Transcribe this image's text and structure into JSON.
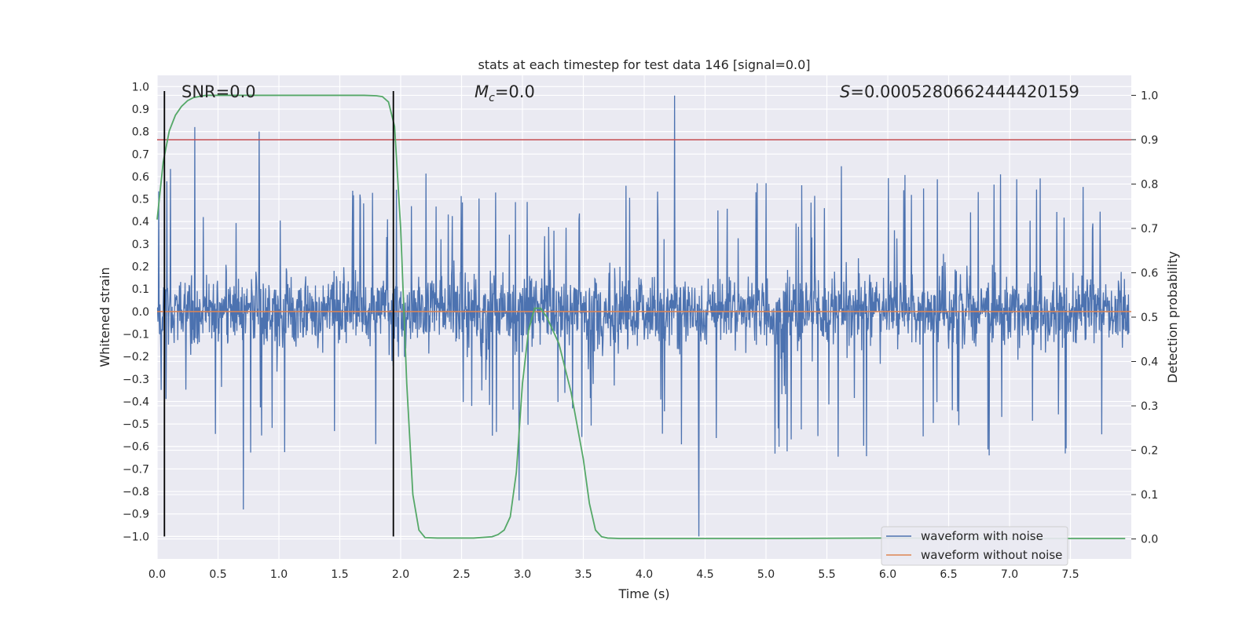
{
  "chart_data": {
    "type": "line",
    "title": "stats at each timestep for test data 146 [signal=0.0]",
    "xlabel": "Time (s)",
    "ylabel": "Whitened strain",
    "y2label": "Detection probability",
    "xlim": [
      0.0,
      8.0
    ],
    "ylim": [
      -1.1,
      1.05
    ],
    "y2lim": [
      -0.045,
      1.045
    ],
    "xticks": [
      0.0,
      0.5,
      1.0,
      1.5,
      2.0,
      2.5,
      3.0,
      3.5,
      4.0,
      4.5,
      5.0,
      5.5,
      6.0,
      6.5,
      7.0,
      7.5
    ],
    "yticks": [
      1.0,
      0.9,
      0.8,
      0.7,
      0.6,
      0.5,
      0.4,
      0.3,
      0.2,
      0.1,
      0.0,
      -0.1,
      -0.2,
      -0.3,
      -0.4,
      -0.5,
      -0.6,
      -0.7,
      -0.8,
      -0.9,
      -1.0
    ],
    "y2ticks": [
      1.0,
      0.9,
      0.8,
      0.7,
      0.6,
      0.5,
      0.4,
      0.3,
      0.2,
      0.1,
      0.0
    ],
    "annotations": {
      "snr": "SNR=0.0",
      "mc_symbol": "M",
      "mc_sub": "c",
      "mc_value": "=0.0",
      "s_symbol": "S",
      "s_value": "=0.0005280662444420159"
    },
    "legend_placement": "lower-right",
    "series": [
      {
        "name": "waveform with noise",
        "color": "#4c72b0",
        "axis": "left",
        "kind": "noise",
        "notable_points": [
          [
            0.31,
            0.82
          ],
          [
            0.84,
            0.8
          ],
          [
            4.26,
            0.96
          ],
          [
            4.46,
            -1.0
          ],
          [
            0.71,
            -0.88
          ],
          [
            2.98,
            -0.84
          ]
        ]
      },
      {
        "name": "waveform without noise",
        "color": "#dd8452",
        "axis": "left",
        "x": [
          0.0,
          8.0
        ],
        "values": [
          0.0,
          0.0
        ]
      },
      {
        "name": "detection probability",
        "color": "#55a868",
        "axis": "right",
        "x": [
          0.0,
          0.05,
          0.1,
          0.15,
          0.2,
          0.25,
          0.3,
          0.4,
          0.6,
          1.0,
          1.5,
          1.7,
          1.8,
          1.85,
          1.9,
          1.95,
          2.0,
          2.05,
          2.1,
          2.15,
          2.2,
          2.3,
          2.6,
          2.75,
          2.8,
          2.85,
          2.9,
          2.95,
          3.0,
          3.05,
          3.1,
          3.15,
          3.2,
          3.3,
          3.4,
          3.5,
          3.55,
          3.6,
          3.65,
          3.7,
          3.8,
          4.0,
          5.0,
          6.0,
          7.0,
          7.95
        ],
        "values": [
          0.72,
          0.85,
          0.92,
          0.955,
          0.975,
          0.988,
          0.995,
          1.0,
          1.0,
          1.0,
          1.0,
          1.0,
          0.999,
          0.997,
          0.985,
          0.93,
          0.7,
          0.35,
          0.1,
          0.02,
          0.003,
          0.002,
          0.002,
          0.005,
          0.01,
          0.02,
          0.05,
          0.15,
          0.35,
          0.47,
          0.52,
          0.52,
          0.5,
          0.44,
          0.33,
          0.18,
          0.08,
          0.02,
          0.005,
          0.002,
          0.001,
          0.001,
          0.001,
          0.002,
          0.001,
          0.001
        ]
      }
    ],
    "hlines": [
      {
        "axis": "right",
        "value": 0.9,
        "color": "#c44e52"
      }
    ],
    "vlines": [
      {
        "x": 0.06,
        "ymin": -1.0,
        "ymax": 0.98,
        "color": "#000000"
      },
      {
        "x": 1.94,
        "ymin": -1.0,
        "ymax": 0.98,
        "color": "#000000"
      }
    ]
  }
}
